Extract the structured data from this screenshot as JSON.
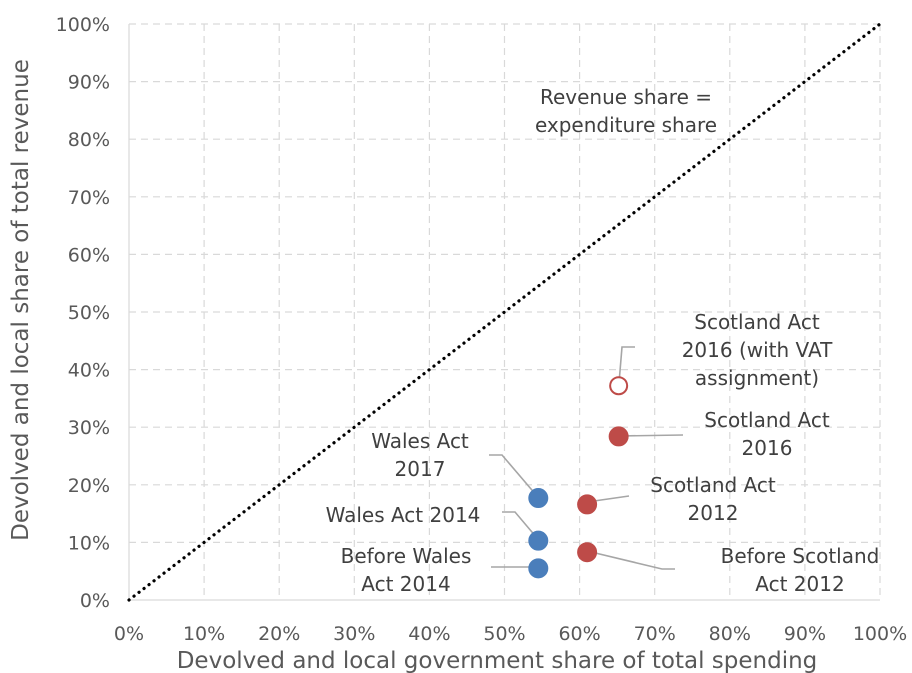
{
  "chart_data": {
    "type": "scatter",
    "xlabel": "Devolved and local government share of total spending",
    "ylabel": "Devolved and local share of total revenue",
    "xlim": [
      0,
      100
    ],
    "ylim": [
      0,
      100
    ],
    "x_ticks": [
      "0%",
      "10%",
      "20%",
      "30%",
      "40%",
      "50%",
      "60%",
      "70%",
      "80%",
      "90%",
      "100%"
    ],
    "y_ticks": [
      "0%",
      "10%",
      "20%",
      "30%",
      "40%",
      "50%",
      "60%",
      "70%",
      "80%",
      "90%",
      "100%"
    ],
    "grid": true,
    "reference_line": {
      "label_lines": [
        "Revenue share =",
        "expenditure share"
      ],
      "from": [
        0,
        0
      ],
      "to": [
        100,
        100
      ]
    },
    "colors": {
      "wales": "#4a7ebb",
      "scotland": "#be4b48",
      "reference": "#000000"
    },
    "points": [
      {
        "x": 54.5,
        "y": 5.5,
        "group": "wales",
        "filled": true,
        "label_lines": [
          "Before Wales",
          "Act 2014"
        ]
      },
      {
        "x": 54.5,
        "y": 10.3,
        "group": "wales",
        "filled": true,
        "label_lines": [
          "Wales Act 2014"
        ]
      },
      {
        "x": 54.5,
        "y": 17.7,
        "group": "wales",
        "filled": true,
        "label_lines": [
          "Wales Act",
          "2017"
        ]
      },
      {
        "x": 61,
        "y": 8.3,
        "group": "scotland",
        "filled": true,
        "label_lines": [
          "Before Scotland",
          "Act 2012"
        ]
      },
      {
        "x": 61,
        "y": 16.6,
        "group": "scotland",
        "filled": true,
        "label_lines": [
          "Scotland Act",
          "2012"
        ]
      },
      {
        "x": 65.2,
        "y": 28.4,
        "group": "scotland",
        "filled": true,
        "label_lines": [
          "Scotland Act",
          "2016"
        ]
      },
      {
        "x": 65.2,
        "y": 37.2,
        "group": "scotland",
        "filled": false,
        "label_lines": [
          "Scotland Act",
          "2016 (with VAT",
          "assignment)"
        ]
      }
    ]
  }
}
